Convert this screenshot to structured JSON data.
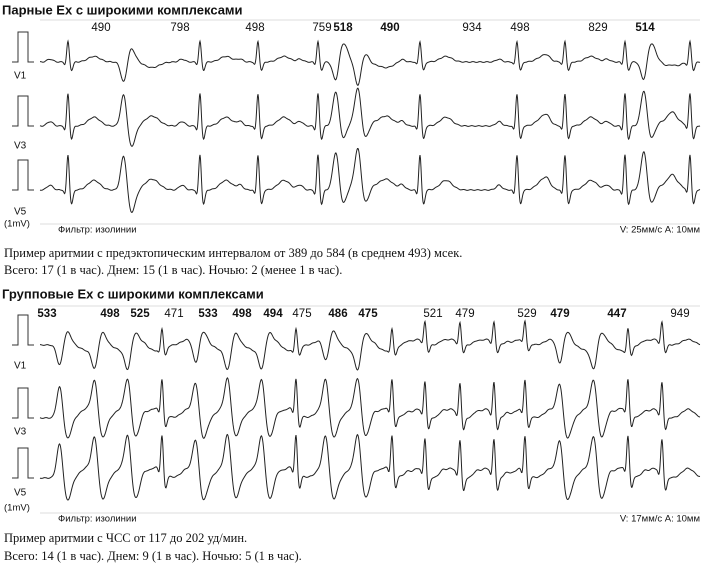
{
  "sections": [
    {
      "title": "Парные Ex с широкими комплексами",
      "intervals": [
        {
          "value": 490,
          "bold": false
        },
        {
          "value": 798,
          "bold": false
        },
        {
          "value": 498,
          "bold": false
        },
        {
          "value": 759,
          "bold": false
        },
        {
          "value": 518,
          "bold": true
        },
        {
          "value": 490,
          "bold": true
        },
        {
          "value": 934,
          "bold": false
        },
        {
          "value": 498,
          "bold": false
        },
        {
          "value": 829,
          "bold": false
        },
        {
          "value": 514,
          "bold": true
        }
      ],
      "leads": [
        "V1",
        "V3",
        "V5"
      ],
      "calibration": "(1mV)",
      "filter": "Фильтр: изолинии",
      "scale": "V: 25мм/с  A: 10мм",
      "description": [
        "Пример аритмии  с предэктопическим интервалом от 389 до 584 (в среднем 493) мсек.",
        "Всего: 17 (1 в час). Днем: 15 (1 в час). Ночью: 2 (менее 1 в час)."
      ]
    },
    {
      "title": "Групповые Ex с широкими комплексами",
      "intervals": [
        {
          "value": 533,
          "bold": true
        },
        {
          "value": 498,
          "bold": true
        },
        {
          "value": 525,
          "bold": true
        },
        {
          "value": 471,
          "bold": false
        },
        {
          "value": 533,
          "bold": true
        },
        {
          "value": 498,
          "bold": true
        },
        {
          "value": 494,
          "bold": true
        },
        {
          "value": 475,
          "bold": false
        },
        {
          "value": 486,
          "bold": true
        },
        {
          "value": 475,
          "bold": true
        },
        {
          "value": 521,
          "bold": false
        },
        {
          "value": 479,
          "bold": false
        },
        {
          "value": 529,
          "bold": false
        },
        {
          "value": 479,
          "bold": true
        },
        {
          "value": 447,
          "bold": true
        },
        {
          "value": 949,
          "bold": false
        }
      ],
      "leads": [
        "V1",
        "V3",
        "V5"
      ],
      "calibration": "(1mV)",
      "filter": "Фильтр: изолинии",
      "scale": "V: 17мм/с  A: 10мм",
      "description": [
        "Пример аритмии  с ЧСС от 117 до 202 уд/мин.",
        "Всего: 14 (1 в час). Днем: 9 (1 в час). Ночью: 5 (1 в час)."
      ]
    }
  ]
}
